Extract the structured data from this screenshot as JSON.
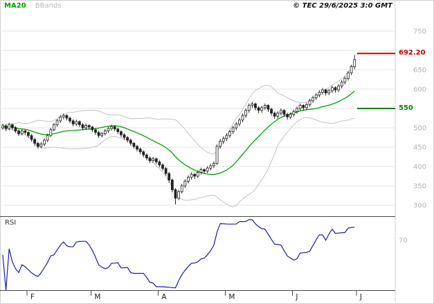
{
  "header": {
    "ma_label": "MA20",
    "bbands_label": "BBands",
    "copyright": "© TEC 29/6/2025 3:0 GMT"
  },
  "price_axis": {
    "grid": [
      750,
      700,
      650,
      600,
      550,
      500,
      450,
      400,
      350,
      300
    ],
    "ticks": [
      750,
      650,
      600,
      500,
      450,
      400,
      350,
      300
    ]
  },
  "levels": {
    "resistance": {
      "value": 692.2,
      "label": "692.20",
      "color": "#bb0000"
    },
    "support": {
      "value": 550.0,
      "label": "550",
      "color": "#008000"
    }
  },
  "rsi_panel": {
    "label": "RSI",
    "ref_label": "70",
    "ref_value": 70,
    "line_color": "#1a1aad"
  },
  "x_axis": {
    "months": [
      {
        "label": "F",
        "index": 8
      },
      {
        "label": "M",
        "index": 28
      },
      {
        "label": "A",
        "index": 49
      },
      {
        "label": "M",
        "index": 70
      },
      {
        "label": "J",
        "index": 91
      },
      {
        "label": "J",
        "index": 111
      }
    ]
  },
  "chart_data": {
    "type": "candlestick",
    "title": "",
    "ylim": [
      271,
      768
    ],
    "rsi_ylim": [
      0,
      100
    ],
    "x_months": [
      "F",
      "M",
      "A",
      "M",
      "J",
      "J"
    ],
    "indicators": {
      "ma_period": 20,
      "bollinger_period": 20,
      "bollinger_stddev": 2,
      "rsi_period": 14
    },
    "colors": {
      "ma": "#00a000",
      "bbands": "#c2c2c2",
      "candle": "#222222",
      "grid": "#e6e6e6",
      "axis_text": "#b4b4b4",
      "frame": "#cfcfcf",
      "separator": "#444444",
      "month_text": "#222222"
    },
    "candles": [
      [
        500,
        511,
        495,
        505
      ],
      [
        505,
        509,
        492,
        498
      ],
      [
        498,
        513,
        494,
        508
      ],
      [
        508,
        511,
        495,
        500
      ],
      [
        500,
        504,
        487,
        492
      ],
      [
        492,
        496,
        479,
        485
      ],
      [
        485,
        497,
        481,
        492
      ],
      [
        492,
        495,
        482,
        488
      ],
      [
        488,
        491,
        474,
        480
      ],
      [
        480,
        484,
        464,
        470
      ],
      [
        470,
        474,
        453,
        460
      ],
      [
        460,
        464,
        446,
        452
      ],
      [
        452,
        463,
        447,
        458
      ],
      [
        458,
        473,
        453,
        468
      ],
      [
        468,
        485,
        463,
        480
      ],
      [
        480,
        500,
        476,
        495
      ],
      [
        495,
        513,
        491,
        508
      ],
      [
        508,
        523,
        503,
        518
      ],
      [
        518,
        533,
        513,
        528
      ],
      [
        528,
        537,
        522,
        532
      ],
      [
        532,
        535,
        519,
        525
      ],
      [
        525,
        529,
        512,
        518
      ],
      [
        518,
        522,
        504,
        510
      ],
      [
        510,
        521,
        505,
        516
      ],
      [
        516,
        519,
        502,
        508
      ],
      [
        508,
        512,
        494,
        500
      ],
      [
        500,
        511,
        495,
        506
      ],
      [
        506,
        509,
        496,
        502
      ],
      [
        502,
        505,
        489,
        495
      ],
      [
        495,
        499,
        482,
        488
      ],
      [
        488,
        492,
        474,
        480
      ],
      [
        480,
        490,
        475,
        485
      ],
      [
        485,
        497,
        480,
        492
      ],
      [
        492,
        503,
        487,
        498
      ],
      [
        498,
        508,
        493,
        503
      ],
      [
        503,
        506,
        491,
        497
      ],
      [
        497,
        501,
        484,
        490
      ],
      [
        490,
        494,
        476,
        482
      ],
      [
        482,
        486,
        469,
        475
      ],
      [
        475,
        479,
        462,
        468
      ],
      [
        468,
        472,
        454,
        460
      ],
      [
        460,
        464,
        446,
        452
      ],
      [
        452,
        456,
        439,
        445
      ],
      [
        445,
        449,
        432,
        438
      ],
      [
        438,
        442,
        424,
        430
      ],
      [
        430,
        434,
        416,
        422
      ],
      [
        422,
        426,
        409,
        415
      ],
      [
        415,
        425,
        410,
        420
      ],
      [
        420,
        423,
        406,
        412
      ],
      [
        412,
        416,
        398,
        404
      ],
      [
        404,
        408,
        389,
        395
      ],
      [
        395,
        399,
        376,
        382
      ],
      [
        382,
        386,
        358,
        365
      ],
      [
        365,
        369,
        333,
        340
      ],
      [
        340,
        344,
        302,
        318
      ],
      [
        318,
        340,
        313,
        335
      ],
      [
        335,
        355,
        330,
        350
      ],
      [
        350,
        367,
        345,
        362
      ],
      [
        362,
        377,
        356,
        372
      ],
      [
        372,
        385,
        366,
        380
      ],
      [
        380,
        383,
        368,
        375
      ],
      [
        375,
        390,
        370,
        385
      ],
      [
        385,
        397,
        379,
        392
      ],
      [
        392,
        395,
        381,
        388
      ],
      [
        388,
        401,
        383,
        396
      ],
      [
        396,
        407,
        390,
        402
      ],
      [
        402,
        413,
        396,
        408
      ],
      [
        408,
        457,
        404,
        452
      ],
      [
        452,
        471,
        446,
        465
      ],
      [
        465,
        478,
        458,
        472
      ],
      [
        472,
        486,
        466,
        480
      ],
      [
        480,
        495,
        474,
        490
      ],
      [
        490,
        505,
        484,
        500
      ],
      [
        500,
        515,
        494,
        510
      ],
      [
        510,
        525,
        504,
        520
      ],
      [
        520,
        537,
        514,
        532
      ],
      [
        532,
        550,
        526,
        545
      ],
      [
        545,
        563,
        539,
        558
      ],
      [
        558,
        568,
        551,
        562
      ],
      [
        562,
        565,
        545,
        552
      ],
      [
        552,
        556,
        538,
        545
      ],
      [
        545,
        557,
        539,
        552
      ],
      [
        552,
        563,
        546,
        558
      ],
      [
        558,
        561,
        541,
        548
      ],
      [
        548,
        552,
        531,
        538
      ],
      [
        538,
        542,
        523,
        530
      ],
      [
        530,
        543,
        524,
        538
      ],
      [
        538,
        550,
        532,
        545
      ],
      [
        545,
        548,
        528,
        535
      ],
      [
        535,
        539,
        521,
        528
      ],
      [
        528,
        540,
        522,
        535
      ],
      [
        535,
        547,
        529,
        542
      ],
      [
        542,
        555,
        536,
        550
      ],
      [
        550,
        563,
        544,
        558
      ],
      [
        558,
        561,
        545,
        552
      ],
      [
        552,
        565,
        546,
        560
      ],
      [
        560,
        575,
        554,
        570
      ],
      [
        570,
        583,
        564,
        578
      ],
      [
        578,
        590,
        572,
        585
      ],
      [
        585,
        597,
        579,
        592
      ],
      [
        592,
        603,
        586,
        598
      ],
      [
        598,
        601,
        583,
        590
      ],
      [
        590,
        601,
        584,
        596
      ],
      [
        596,
        609,
        590,
        604
      ],
      [
        604,
        607,
        591,
        598
      ],
      [
        598,
        613,
        592,
        608
      ],
      [
        608,
        623,
        602,
        618
      ],
      [
        618,
        633,
        612,
        628
      ],
      [
        628,
        647,
        622,
        642
      ],
      [
        642,
        663,
        636,
        658
      ],
      [
        658,
        688,
        651,
        676
      ]
    ]
  }
}
